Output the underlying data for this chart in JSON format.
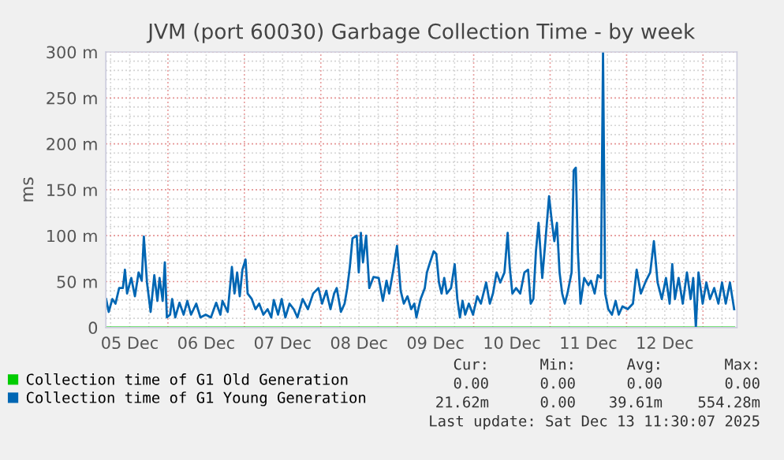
{
  "chart_data": {
    "type": "line",
    "title": "JVM (port 60030) Garbage Collection Time - by week",
    "ylabel": "ms",
    "xlim": [
      "2025-12-05T04:30",
      "2025-12-13T10:40"
    ],
    "ylim": [
      0,
      300
    ],
    "xticks": [
      {
        "value": "2025-12-05T12:00",
        "label": "05 Dec"
      },
      {
        "value": "2025-12-06T00:00",
        "label": null
      },
      {
        "value": "2025-12-06T12:00",
        "label": "06 Dec"
      },
      {
        "value": "2025-12-07T00:00",
        "label": null
      },
      {
        "value": "2025-12-07T12:00",
        "label": "07 Dec"
      },
      {
        "value": "2025-12-08T00:00",
        "label": null
      },
      {
        "value": "2025-12-08T12:00",
        "label": "08 Dec"
      },
      {
        "value": "2025-12-09T00:00",
        "label": null
      },
      {
        "value": "2025-12-09T12:00",
        "label": "09 Dec"
      },
      {
        "value": "2025-12-10T00:00",
        "label": null
      },
      {
        "value": "2025-12-10T12:00",
        "label": "10 Dec"
      },
      {
        "value": "2025-12-11T00:00",
        "label": null
      },
      {
        "value": "2025-12-11T12:00",
        "label": "11 Dec"
      },
      {
        "value": "2025-12-12T00:00",
        "label": null
      },
      {
        "value": "2025-12-12T12:00",
        "label": "12 Dec"
      },
      {
        "value": "2025-12-13T00:00",
        "label": null
      }
    ],
    "yticks": [
      0,
      {
        "value": 50,
        "label": "50 m"
      },
      {
        "value": 100,
        "label": "100 m"
      },
      {
        "value": 150,
        "label": "150 m"
      },
      {
        "value": 200,
        "label": "200 m"
      },
      {
        "value": 250,
        "label": "250 m"
      },
      {
        "value": 300,
        "label": "300 m"
      }
    ],
    "grid": true,
    "legend": "bottom",
    "annotations": [
      "Cur:",
      "Min:",
      "Avg:",
      "Max:",
      "0.00",
      "0.00",
      "0.00",
      "0.00",
      "21.62m",
      "0.00",
      "39.61m",
      "554.28m",
      "Last update: Sat Dec 13 11:30:07 2025"
    ],
    "series": [
      {
        "name": "Collection time of G1 Old Generation",
        "color": "#00cc00",
        "x": [
          "2025-12-05T04:35",
          "2025-12-13T09:47"
        ],
        "values": [
          0,
          0
        ]
      },
      {
        "name": "Collection time of G1 Young Generation",
        "color": "#0066b3",
        "x": [
          "2025-12-05T04:35",
          "2025-12-05T05:24",
          "2025-12-05T06:33",
          "2025-12-05T07:32",
          "2025-12-05T08:41",
          "2025-12-05T09:51",
          "2025-12-05T10:30",
          "2025-12-05T11:10",
          "2025-12-05T12:29",
          "2025-12-05T13:38",
          "2025-12-05T14:47",
          "2025-12-05T15:46",
          "2025-12-05T16:26",
          "2025-12-05T17:25",
          "2025-12-05T18:34",
          "2025-12-05T19:43",
          "2025-12-05T20:42",
          "2025-12-05T21:22",
          "2025-12-05T22:21",
          "2025-12-05T23:01",
          "2025-12-05T23:40",
          "2025-12-06T00:40",
          "2025-12-06T01:19",
          "2025-12-06T02:18",
          "2025-12-06T03:37",
          "2025-12-06T04:56",
          "2025-12-06T06:05",
          "2025-12-06T07:15",
          "2025-12-06T08:53",
          "2025-12-06T10:12",
          "2025-12-06T11:51",
          "2025-12-06T13:30",
          "2025-12-06T15:09",
          "2025-12-06T16:28",
          "2025-12-06T17:07",
          "2025-12-06T18:46",
          "2025-12-06T20:05",
          "2025-12-06T20:54",
          "2025-12-06T21:44",
          "2025-12-06T22:33",
          "2025-12-06T23:23",
          "2025-12-07T00:22",
          "2025-12-07T01:01",
          "2025-12-07T02:20",
          "2025-12-07T03:29",
          "2025-12-07T04:39",
          "2025-12-07T05:58",
          "2025-12-07T07:17",
          "2025-12-07T08:26",
          "2025-12-07T09:15",
          "2025-12-07T10:34",
          "2025-12-07T11:43",
          "2025-12-07T12:52",
          "2025-12-07T14:11",
          "2025-12-07T15:30",
          "2025-12-07T16:40",
          "2025-12-07T18:18",
          "2025-12-07T19:57",
          "2025-12-07T21:36",
          "2025-12-07T23:15",
          "2025-12-08T00:24",
          "2025-12-08T01:43",
          "2025-12-08T03:02",
          "2025-12-08T04:11",
          "2025-12-08T05:00",
          "2025-12-08T06:19",
          "2025-12-08T07:28",
          "2025-12-08T08:18",
          "2025-12-08T09:07",
          "2025-12-08T09:57",
          "2025-12-08T11:16",
          "2025-12-08T11:55",
          "2025-12-08T12:35",
          "2025-12-08T13:14",
          "2025-12-08T14:14",
          "2025-12-08T15:13",
          "2025-12-08T16:32",
          "2025-12-08T18:10",
          "2025-12-08T19:29",
          "2025-12-08T20:38",
          "2025-12-08T21:28",
          "2025-12-08T22:47",
          "2025-12-08T23:56",
          "2025-12-09T01:05",
          "2025-12-09T02:04",
          "2025-12-09T03:13",
          "2025-12-09T04:22",
          "2025-12-09T05:22",
          "2025-12-09T06:01",
          "2025-12-09T07:20",
          "2025-12-09T08:39",
          "2025-12-09T09:19",
          "2025-12-09T10:18",
          "2025-12-09T11:27",
          "2025-12-09T12:16",
          "2025-12-09T13:06",
          "2025-12-09T13:55",
          "2025-12-09T14:45",
          "2025-12-09T15:34",
          "2025-12-09T16:53",
          "2025-12-09T18:02",
          "2025-12-09T18:52",
          "2025-12-09T19:41",
          "2025-12-09T20:30",
          "2025-12-09T21:20",
          "2025-12-09T22:29",
          "2025-12-09T23:48",
          "2025-12-10T01:07",
          "2025-12-10T02:16",
          "2025-12-10T03:55",
          "2025-12-10T05:04",
          "2025-12-10T06:03",
          "2025-12-10T07:12",
          "2025-12-10T08:21",
          "2025-12-10T09:40",
          "2025-12-10T10:40",
          "2025-12-10T11:19",
          "2025-12-10T12:09",
          "2025-12-10T13:18",
          "2025-12-10T14:37",
          "2025-12-10T15:56",
          "2025-12-10T17:05",
          "2025-12-10T17:54",
          "2025-12-10T18:44",
          "2025-12-10T19:33",
          "2025-12-10T20:22",
          "2025-12-10T21:32",
          "2025-12-10T22:31",
          "2025-12-10T23:40",
          "2025-12-11T00:29",
          "2025-12-11T01:19",
          "2025-12-11T02:08",
          "2025-12-11T02:58",
          "2025-12-11T03:47",
          "2025-12-11T04:36",
          "2025-12-11T05:26",
          "2025-12-11T06:45",
          "2025-12-11T07:24",
          "2025-12-11T08:04",
          "2025-12-11T08:43",
          "2025-12-11T09:33",
          "2025-12-11T10:42",
          "2025-12-11T12:01",
          "2025-12-11T12:50",
          "2025-12-11T13:59",
          "2025-12-11T14:59",
          "2025-12-11T15:58",
          "2025-12-11T16:37",
          "2025-12-11T17:17",
          "2025-12-11T18:16",
          "2025-12-11T19:25",
          "2025-12-11T20:34",
          "2025-12-11T21:33",
          "2025-12-11T22:43",
          "2025-12-12T00:22",
          "2025-12-12T02:00",
          "2025-12-12T03:10",
          "2025-12-12T04:29",
          "2025-12-12T06:07",
          "2025-12-12T07:26",
          "2025-12-12T08:35",
          "2025-12-12T09:45",
          "2025-12-12T11:04",
          "2025-12-12T12:23",
          "2025-12-12T13:32",
          "2025-12-12T14:21",
          "2025-12-12T15:11",
          "2025-12-12T16:20",
          "2025-12-12T17:39",
          "2025-12-12T18:58",
          "2025-12-12T20:07",
          "2025-12-12T20:56",
          "2025-12-12T21:46",
          "2025-12-12T22:35",
          "2025-12-12T23:54",
          "2025-12-13T01:03",
          "2025-12-13T02:12",
          "2025-12-13T03:31",
          "2025-12-13T04:50",
          "2025-12-13T05:59",
          "2025-12-13T07:09",
          "2025-12-13T08:28",
          "2025-12-13T09:47"
        ],
        "values": [
          31,
          17,
          31,
          26,
          43,
          43,
          63,
          37,
          54,
          34,
          60,
          51,
          99,
          49,
          17,
          57,
          29,
          54,
          29,
          71,
          11,
          14,
          31,
          11,
          27,
          14,
          29,
          14,
          26,
          11,
          14,
          11,
          27,
          14,
          29,
          17,
          66,
          37,
          60,
          34,
          63,
          74,
          37,
          31,
          20,
          26,
          14,
          20,
          11,
          30,
          14,
          31,
          11,
          26,
          20,
          11,
          31,
          20,
          37,
          43,
          26,
          40,
          20,
          37,
          43,
          17,
          26,
          43,
          66,
          97,
          100,
          60,
          103,
          71,
          100,
          43,
          55,
          54,
          29,
          51,
          37,
          63,
          89,
          40,
          26,
          34,
          20,
          26,
          11,
          31,
          43,
          60,
          71,
          83,
          80,
          49,
          37,
          54,
          37,
          43,
          69,
          31,
          11,
          29,
          14,
          26,
          14,
          34,
          26,
          49,
          26,
          37,
          60,
          49,
          60,
          103,
          66,
          37,
          43,
          37,
          60,
          63,
          26,
          31,
          83,
          114,
          54,
          94,
          143,
          117,
          94,
          114,
          60,
          37,
          26,
          37,
          60,
          171,
          174,
          83,
          26,
          54,
          46,
          51,
          37,
          57,
          54,
          300,
          37,
          20,
          14,
          29,
          14,
          23,
          20,
          26,
          63,
          37,
          51,
          60,
          94,
          49,
          31,
          54,
          26,
          69,
          31,
          54,
          26,
          60,
          31,
          54,
          0,
          60,
          26,
          49,
          31,
          43,
          26,
          49,
          26,
          49,
          20
        ]
      }
    ]
  }
}
